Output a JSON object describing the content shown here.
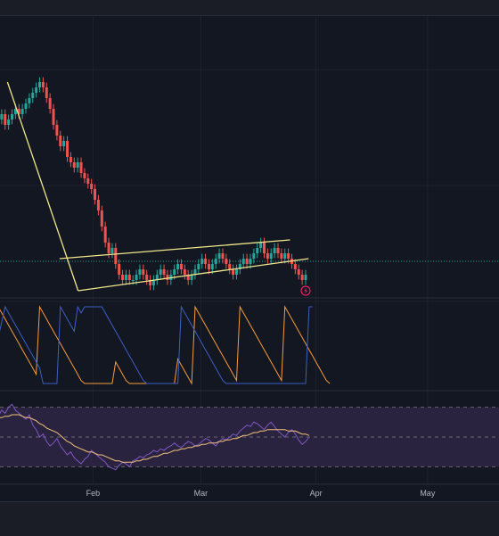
{
  "colors": {
    "background": "#131722",
    "grid": "#1e222d",
    "up": "#26a69a",
    "down": "#ef5350",
    "trendline": "#f0e68c",
    "aroon_up": "#f89b3a",
    "aroon_down": "#3b5fc4",
    "rsi": "#7e57c2",
    "rsi_ma": "#f0c27b",
    "rsi_band": "#2a2340"
  },
  "xaxis": {
    "labels": [
      "Feb",
      "Mar",
      "Apr",
      "May"
    ]
  },
  "icons": {
    "pane_marker": "lightning-icon"
  },
  "chart_data": [
    {
      "type": "candlestick",
      "title": "",
      "xlabel": "",
      "ylabel": "",
      "ylim": [
        53,
        103
      ],
      "x_range": [
        "2024-01-01",
        "2024-05-31"
      ],
      "grid": true,
      "candles_close": [
        85,
        86,
        84,
        85,
        86,
        87,
        86,
        87,
        88,
        89,
        90,
        91,
        92,
        91,
        89,
        87,
        84,
        82,
        80,
        81,
        78,
        77,
        76,
        77,
        75,
        74,
        73,
        72,
        70,
        68,
        65,
        62,
        60,
        61,
        58,
        56,
        55,
        56,
        55,
        55,
        56,
        57,
        56,
        55,
        54,
        55,
        56,
        57,
        56,
        55,
        56,
        57,
        58,
        57,
        56,
        55,
        56,
        57,
        58,
        59,
        58,
        57,
        58,
        59,
        60,
        59,
        58,
        57,
        56,
        57,
        58,
        59,
        58,
        59,
        60,
        61,
        62,
        60,
        59,
        60,
        61,
        60,
        59,
        60,
        59,
        58,
        57,
        56,
        55,
        56
      ],
      "trendlines": [
        {
          "name": "upper_wedge",
          "points": [
            [
              "2024-01-23",
              59
            ],
            [
              "2024-03-25",
              62.5
            ]
          ]
        },
        {
          "name": "lower_wedge",
          "points": [
            [
              "2024-01-28",
              53
            ],
            [
              "2024-03-30",
              59
            ]
          ]
        },
        {
          "name": "decline",
          "points": [
            [
              "2024-01-09",
              92
            ],
            [
              "2024-01-28",
              53
            ]
          ]
        }
      ],
      "price_line": 58.5
    },
    {
      "type": "line",
      "title": "",
      "ylim": [
        0,
        100
      ],
      "series": [
        {
          "values": [
            100,
            92,
            84,
            76,
            68,
            60,
            52,
            44,
            36,
            28,
            20,
            12,
            100,
            92,
            84,
            76,
            68,
            60,
            52,
            44,
            36,
            28,
            20,
            12,
            4,
            0,
            0,
            0,
            0,
            0,
            0,
            0,
            0,
            0,
            28,
            20,
            12,
            4,
            0,
            0,
            0,
            0,
            0,
            0,
            0,
            0,
            0,
            0,
            0,
            0,
            0,
            0,
            32,
            24,
            16,
            8,
            0,
            100,
            92,
            84,
            76,
            68,
            60,
            52,
            44,
            36,
            28,
            20,
            12,
            4,
            100,
            92,
            84,
            76,
            68,
            60,
            52,
            44,
            36,
            28,
            20,
            12,
            4,
            100,
            92,
            84,
            76,
            68,
            60,
            52,
            44,
            36,
            28,
            20,
            12,
            4,
            0
          ]
        },
        {
          "values": [
            60,
            80,
            100,
            92,
            84,
            76,
            68,
            60,
            52,
            44,
            36,
            28,
            20,
            0,
            0,
            0,
            0,
            0,
            100,
            92,
            84,
            76,
            68,
            100,
            92,
            100,
            100,
            100,
            100,
            100,
            100,
            92,
            84,
            76,
            68,
            60,
            52,
            44,
            36,
            28,
            20,
            12,
            4,
            0,
            0,
            0,
            0,
            0,
            0,
            0,
            0,
            0,
            0,
            100,
            92,
            84,
            76,
            68,
            60,
            52,
            44,
            36,
            28,
            20,
            12,
            4,
            0,
            0,
            0,
            0,
            0,
            0,
            0,
            0,
            0,
            0,
            0,
            0,
            0,
            0,
            0,
            0,
            0,
            0,
            0,
            0,
            0,
            0,
            0,
            0,
            100,
            100
          ]
        }
      ]
    },
    {
      "type": "line",
      "title": "",
      "ylim": [
        20,
        80
      ],
      "bands": [
        30,
        50,
        70
      ],
      "series": [
        {
          "values": [
            64,
            68,
            66,
            70,
            72,
            68,
            66,
            64,
            62,
            65,
            58,
            55,
            50,
            52,
            47,
            44,
            46,
            49,
            44,
            41,
            38,
            40,
            36,
            34,
            32,
            35,
            37,
            41,
            39,
            37,
            35,
            33,
            30,
            29,
            28,
            31,
            33,
            32,
            30,
            34,
            35,
            37,
            36,
            38,
            39,
            41,
            40,
            42,
            41,
            43,
            44,
            46,
            44,
            43,
            45,
            47,
            46,
            44,
            45,
            47,
            49,
            48,
            46,
            44,
            47,
            49,
            48,
            50,
            52,
            51,
            54,
            56,
            58,
            57,
            60,
            59,
            57,
            55,
            58,
            60,
            57,
            54,
            52,
            50,
            53,
            55,
            52,
            48,
            45,
            47,
            50
          ]
        },
        {
          "values": [
            63,
            63,
            64,
            64,
            65,
            65,
            65,
            64,
            63,
            63,
            62,
            61,
            59,
            58,
            56,
            55,
            54,
            53,
            51,
            49,
            47,
            46,
            44,
            43,
            42,
            41,
            40,
            40,
            39,
            38,
            38,
            37,
            36,
            35,
            34,
            34,
            33,
            33,
            33,
            33,
            34,
            34,
            35,
            35,
            36,
            37,
            37,
            38,
            39,
            39,
            40,
            41,
            41,
            42,
            42,
            43,
            43,
            44,
            44,
            45,
            45,
            46,
            46,
            46,
            47,
            47,
            48,
            48,
            49,
            49,
            50,
            51,
            51,
            52,
            53,
            53,
            54,
            54,
            55,
            55,
            55,
            55,
            55,
            55,
            54,
            54,
            54,
            53,
            52,
            52,
            51
          ]
        }
      ]
    }
  ]
}
